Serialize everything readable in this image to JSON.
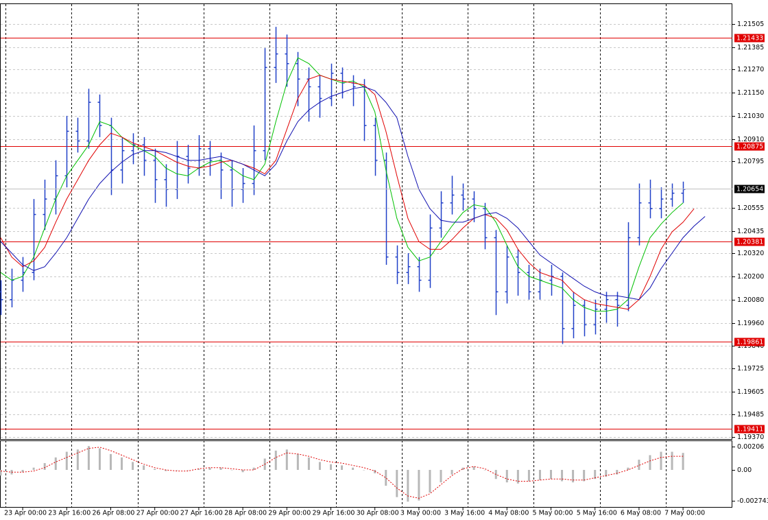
{
  "chart_data": [
    {
      "type": "ohlc",
      "categories": [
        null,
        null,
        "23 Apr 00:00",
        null,
        null,
        null,
        "23 Apr 16:00",
        null,
        null,
        null,
        "26 Apr 08:00",
        null,
        null,
        null,
        "27 Apr 00:00",
        null,
        null,
        null,
        "27 Apr 16:00",
        null,
        null,
        null,
        "28 Apr 08:00",
        null,
        null,
        null,
        "29 Apr 00:00",
        null,
        null,
        null,
        "29 Apr 16:00",
        null,
        null,
        null,
        "30 Apr 08:00",
        null,
        null,
        null,
        "3 May 00:00",
        null,
        null,
        null,
        "3 May 16:00",
        null,
        null,
        null,
        "4 May 08:00",
        null,
        null,
        null,
        "5 May 00:00",
        null,
        null,
        null,
        "5 May 16:00",
        null,
        null,
        null,
        "6 May 08:00",
        null,
        null,
        null,
        "7 May 00:00",
        null,
        null
      ],
      "open": [
        1.2012,
        1.2008,
        1.2018,
        1.2022,
        1.2052,
        1.206,
        1.2072,
        1.2095,
        1.209,
        1.211,
        1.2098,
        1.2075,
        1.2085,
        1.2088,
        1.208,
        1.207,
        1.2065,
        1.2082,
        1.2076,
        1.2086,
        1.208,
        1.2075,
        1.2065,
        1.2068,
        1.2085,
        1.2128,
        1.2135,
        1.213,
        1.2122,
        1.2118,
        1.2112,
        1.2125,
        1.212,
        1.2118,
        1.2098,
        1.208,
        1.203,
        1.2022,
        1.2025,
        1.2018,
        1.2045,
        1.2058,
        1.2062,
        1.206,
        1.2055,
        1.204,
        1.2012,
        1.203,
        1.2022,
        1.2012,
        1.2018,
        1.202,
        1.1993,
        1.2005,
        1.1995,
        1.2003,
        1.2008,
        1.2005,
        1.204,
        1.2058,
        1.2055,
        1.206,
        1.2063,
        null,
        null
      ],
      "high": [
        1.2018,
        1.2024,
        1.203,
        1.206,
        1.207,
        1.208,
        1.2103,
        1.2102,
        1.2117,
        1.2114,
        1.2102,
        1.2092,
        1.2094,
        1.2092,
        1.2086,
        1.2078,
        1.209,
        1.2088,
        1.2093,
        1.209,
        1.2084,
        1.208,
        1.2076,
        1.2098,
        1.2138,
        1.2149,
        1.2145,
        1.2136,
        1.2128,
        1.2124,
        1.213,
        1.2128,
        1.2124,
        1.2122,
        1.2102,
        1.2084,
        1.2036,
        1.2032,
        1.203,
        1.2052,
        1.2064,
        1.2072,
        1.2068,
        1.2064,
        1.2058,
        1.2044,
        1.2036,
        1.2034,
        1.2026,
        1.2024,
        1.2026,
        1.2022,
        1.2012,
        1.2008,
        1.2008,
        1.2012,
        1.2012,
        1.2048,
        1.2068,
        1.207,
        1.2066,
        1.2068,
        1.2069,
        null,
        null
      ],
      "low": [
        1.2,
        1.2004,
        1.2012,
        1.2018,
        1.2044,
        1.2052,
        1.2066,
        1.2084,
        1.2086,
        1.2092,
        1.2062,
        1.2068,
        1.2078,
        1.2072,
        1.2058,
        1.2056,
        1.206,
        1.2068,
        1.2072,
        1.2072,
        1.206,
        1.2056,
        1.2058,
        1.2062,
        1.208,
        1.212,
        1.2118,
        1.2108,
        1.21,
        1.2102,
        1.2108,
        1.2112,
        1.2108,
        1.209,
        1.2072,
        1.2026,
        1.2016,
        1.2016,
        1.2012,
        1.2014,
        1.204,
        1.2052,
        1.2054,
        1.2048,
        1.2034,
        1.2,
        1.2006,
        1.201,
        1.2008,
        1.2008,
        1.201,
        1.1985,
        1.1988,
        1.1989,
        1.199,
        1.1996,
        1.1994,
        1.2002,
        1.2036,
        1.205,
        1.205,
        1.2056,
        1.2058,
        null,
        null
      ],
      "close": [
        1.2008,
        1.2018,
        1.2022,
        1.2052,
        1.206,
        1.2072,
        1.2095,
        1.209,
        1.211,
        1.2098,
        1.2075,
        1.2085,
        1.2088,
        1.208,
        1.207,
        1.2065,
        1.2082,
        1.2076,
        1.2086,
        1.208,
        1.2075,
        1.2065,
        1.2068,
        1.2085,
        1.2128,
        1.2135,
        1.213,
        1.2122,
        1.2118,
        1.2112,
        1.2125,
        1.212,
        1.2118,
        1.2098,
        1.208,
        1.203,
        1.2022,
        1.2025,
        1.2018,
        1.2045,
        1.2058,
        1.2062,
        1.206,
        1.2055,
        1.204,
        1.2012,
        1.203,
        1.2022,
        1.2012,
        1.2018,
        1.202,
        1.1993,
        1.2005,
        1.1995,
        1.2003,
        1.2008,
        1.2005,
        1.204,
        1.2058,
        1.2055,
        1.206,
        1.2063,
        1.2065,
        null,
        null
      ],
      "color": "#2040c8",
      "lines": [
        {
          "color": "#00c000",
          "values": [
            1.2022,
            1.2018,
            1.202,
            1.203,
            1.2045,
            1.206,
            1.2072,
            1.208,
            1.2088,
            1.21,
            1.2098,
            1.2092,
            1.2088,
            1.2085,
            1.2082,
            1.2076,
            1.2073,
            1.2072,
            1.2076,
            1.2079,
            1.208,
            1.2076,
            1.2072,
            1.207,
            1.2078,
            1.21,
            1.212,
            1.2133,
            1.213,
            1.2124,
            1.2122,
            1.212,
            1.2121,
            1.2118,
            1.2105,
            1.2075,
            1.205,
            1.2035,
            1.2028,
            1.203,
            1.2038,
            1.2046,
            1.2053,
            1.2057,
            1.2056,
            1.2048,
            1.2036,
            1.2025,
            1.202,
            1.2018,
            1.2016,
            1.2014,
            1.2008,
            1.2004,
            1.2002,
            1.2002,
            1.2003,
            1.2008,
            1.2025,
            1.204,
            1.2047,
            1.2053,
            1.2058,
            null,
            null
          ]
        },
        {
          "color": "#e00000",
          "values": [
            1.204,
            1.203,
            1.2025,
            1.2028,
            1.2035,
            1.2048,
            1.206,
            1.207,
            1.208,
            1.2088,
            1.2094,
            1.2092,
            1.2089,
            1.2087,
            1.2085,
            1.2082,
            1.2079,
            1.2077,
            1.2076,
            1.2077,
            1.2079,
            1.208,
            1.2078,
            1.2076,
            1.2073,
            1.208,
            1.2096,
            1.2112,
            1.2122,
            1.2124,
            1.2122,
            1.2121,
            1.212,
            1.2119,
            1.2114,
            1.2095,
            1.2072,
            1.205,
            1.2038,
            1.2034,
            1.2034,
            1.2039,
            1.2045,
            1.205,
            1.2052,
            1.205,
            1.2044,
            1.2034,
            1.2027,
            1.2022,
            1.202,
            1.2018,
            1.2012,
            1.2008,
            1.2006,
            1.2005,
            1.2004,
            1.2003,
            1.2008,
            1.202,
            1.2034,
            1.2043,
            1.2048,
            1.2055,
            null
          ]
        },
        {
          "color": "#1010b0",
          "values": [
            1.2038,
            1.2032,
            1.2026,
            1.2023,
            1.2025,
            1.2032,
            1.204,
            1.205,
            1.206,
            1.2068,
            1.2074,
            1.2079,
            1.2083,
            1.2085,
            1.2085,
            1.2084,
            1.2082,
            1.208,
            1.208,
            1.2081,
            1.2082,
            1.208,
            1.2078,
            1.2075,
            1.2072,
            1.2078,
            1.209,
            1.21,
            1.2106,
            1.211,
            1.2113,
            1.2115,
            1.2117,
            1.2118,
            1.2116,
            1.211,
            1.2102,
            1.2082,
            1.2065,
            1.2055,
            1.2049,
            1.2048,
            1.2048,
            1.205,
            1.2052,
            1.2053,
            1.205,
            1.2045,
            1.2038,
            1.2031,
            1.2027,
            1.2023,
            1.2019,
            1.2015,
            1.2012,
            1.201,
            1.201,
            1.2009,
            1.2008,
            1.2014,
            1.2024,
            1.2032,
            1.204,
            1.2046,
            1.2051
          ]
        }
      ],
      "hlines": [
        1.21433,
        1.20875,
        1.20381,
        1.19861,
        1.19411
      ],
      "hline_color": "#e00000",
      "current_price": 1.20654,
      "ylim": [
        1.19359,
        1.21611
      ],
      "yticks": [
        1.21505,
        1.21385,
        {
          "value": 1.2127,
          "label": "1.21270"
        },
        {
          "value": 1.2115,
          "label": "1.21150"
        },
        {
          "value": 1.2103,
          "label": "1.21030"
        },
        {
          "value": 1.2091,
          "label": "1.20910"
        },
        1.20795,
        1.20555,
        1.20435,
        {
          "value": 1.2032,
          "label": "1.20320"
        },
        {
          "value": 1.202,
          "label": "1.20200"
        },
        {
          "value": 1.2008,
          "label": "1.20080"
        },
        {
          "value": 1.1996,
          "label": "1.19960"
        },
        {
          "value": 1.1984,
          "label": "1.19840"
        },
        1.19725,
        1.19605,
        1.19485,
        {
          "value": 1.1937,
          "label": "1.19370"
        }
      ],
      "grid": true
    },
    {
      "type": "macd",
      "histogram": [
        -0.0005,
        -0.0004,
        -0.0002,
        0.0002,
        0.0006,
        0.0011,
        0.0016,
        0.0018,
        0.0021,
        0.0019,
        0.0014,
        0.0011,
        0.0007,
        0.0004,
        0.0001,
        -0.0001,
        0,
        0,
        0.0001,
        0.0002,
        0.0002,
        0,
        -0.0002,
        0.0002,
        0.001,
        0.0017,
        0.0018,
        0.0014,
        0.0011,
        0.0007,
        0.0005,
        0.0004,
        0.0002,
        0,
        -0.0003,
        -0.0014,
        -0.0024,
        -0.0028,
        -0.0027,
        -0.002,
        -0.0011,
        -0.0004,
        0.0002,
        0.0003,
        0,
        -0.0008,
        -0.0011,
        -0.0012,
        -0.001,
        -0.0009,
        -0.0008,
        -0.001,
        -0.0011,
        -0.001,
        -0.0008,
        -0.0006,
        -0.0004,
        0.0002,
        0.0009,
        0.0013,
        0.0016,
        0.0016,
        0.0015
      ],
      "histogram_color": "#b8b8b8",
      "signal": [
        -0.0001,
        -0.0002,
        -0.0002,
        -0.0001,
        0.0002,
        0.0007,
        0.0011,
        0.0015,
        0.0019,
        0.002,
        0.0017,
        0.0013,
        0.0009,
        0.0005,
        0.0002,
        0,
        -0.0001,
        -0.0001,
        0.0001,
        0.0002,
        0.0002,
        0.0001,
        0,
        0,
        0.0005,
        0.0011,
        0.0015,
        0.0014,
        0.0012,
        0.0009,
        0.0007,
        0.0006,
        0.0004,
        0.0002,
        -0.0001,
        -0.0007,
        -0.0016,
        -0.0023,
        -0.0025,
        -0.0021,
        -0.0013,
        -0.0005,
        0.0001,
        0.0003,
        0.0001,
        -0.0004,
        -0.0008,
        -0.001,
        -0.001,
        -0.0009,
        -0.0008,
        -0.0008,
        -0.0009,
        -0.0009,
        -0.0007,
        -0.0005,
        -0.0003,
        0,
        0.0004,
        0.0008,
        0.0011,
        0.0012,
        0.0012
      ],
      "signal_color": "#e00000",
      "ylim": [
        -0.00333,
        0.00254
      ],
      "yticks": [
        0.00206,
        {
          "value": 0,
          "label": "0.00"
        },
        -0.002743
      ]
    }
  ]
}
